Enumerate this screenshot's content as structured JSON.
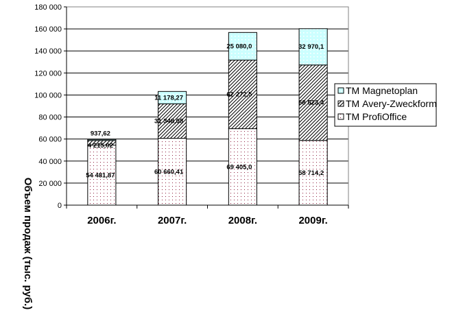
{
  "chart_data": {
    "type": "bar",
    "stacked": true,
    "categories": [
      "2006г.",
      "2007г.",
      "2008г.",
      "2009г."
    ],
    "series": [
      {
        "name": "ТМ ProfiOffice",
        "values": [
          54481.87,
          60660.41,
          69405.0,
          58714.2
        ],
        "labels": [
          "54 481,87",
          "60 660,41",
          "69 405,0",
          "58 714,2"
        ],
        "color": "#ffffff",
        "pattern": "dots",
        "pattern_color": "#8b1a3a"
      },
      {
        "name": "ТМ Avery-Zweckform",
        "values": [
          4215.02,
          31348.08,
          62272.5,
          68523.4
        ],
        "labels": [
          "4 215,02",
          "31 348,08",
          "62 272,5",
          "68 523,4"
        ],
        "color": "#ffffff",
        "pattern": "diagonal-hatch",
        "pattern_color": "#000000"
      },
      {
        "name": "ТМ Magnetoplan",
        "values": [
          937.62,
          11178.27,
          25080.0,
          32970.1
        ],
        "labels": [
          "937,62",
          "11 178,27",
          "25 080,0",
          "32 970,1"
        ],
        "color": "#ccffff",
        "pattern": "grid-dots",
        "pattern_color": "#ffffff"
      }
    ],
    "ylabel": "Объем продаж (тыс. руб.)",
    "xlabel": "",
    "title": "",
    "ylim": [
      0,
      180000
    ],
    "yticks": [
      0,
      20000,
      40000,
      60000,
      80000,
      100000,
      120000,
      140000,
      160000,
      180000
    ],
    "ytick_labels": [
      "0",
      "20 000",
      "40 000",
      "60 000",
      "80 000",
      "100 000",
      "120 000",
      "140 000",
      "160 000",
      "180 000"
    ],
    "grid": true,
    "legend": "right"
  }
}
